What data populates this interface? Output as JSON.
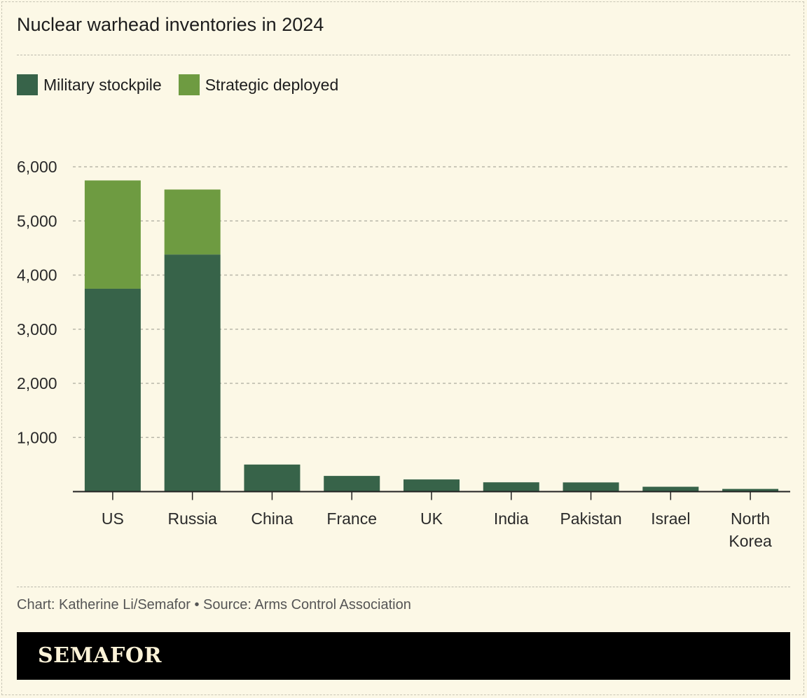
{
  "title": "Nuclear warhead inventories in 2024",
  "legend": [
    {
      "label": "Military stockpile",
      "color": "#376349"
    },
    {
      "label": "Strategic deployed",
      "color": "#6e9b41"
    }
  ],
  "source": "Chart: Katherine Li/Semafor • Source: Arms Control Association",
  "brand": "SEMAFOR",
  "chart_data": {
    "type": "bar",
    "stacked": true,
    "categories": [
      "US",
      "Russia",
      "China",
      "France",
      "UK",
      "India",
      "Pakistan",
      "Israel",
      "North Korea"
    ],
    "series": [
      {
        "name": "Military stockpile",
        "color": "#376349",
        "values": [
          3748,
          4380,
          500,
          290,
          225,
          172,
          170,
          90,
          50
        ]
      },
      {
        "name": "Strategic deployed",
        "color": "#6e9b41",
        "values": [
          2000,
          1200,
          0,
          0,
          0,
          0,
          0,
          0,
          0
        ]
      }
    ],
    "ylim": [
      0,
      6000
    ],
    "yticks": [
      1000,
      2000,
      3000,
      4000,
      5000,
      6000
    ],
    "ytick_labels": [
      "1,000",
      "2,000",
      "3,000",
      "4,000",
      "5,000",
      "6,000"
    ],
    "grid": true,
    "xlabel": "",
    "ylabel": ""
  }
}
